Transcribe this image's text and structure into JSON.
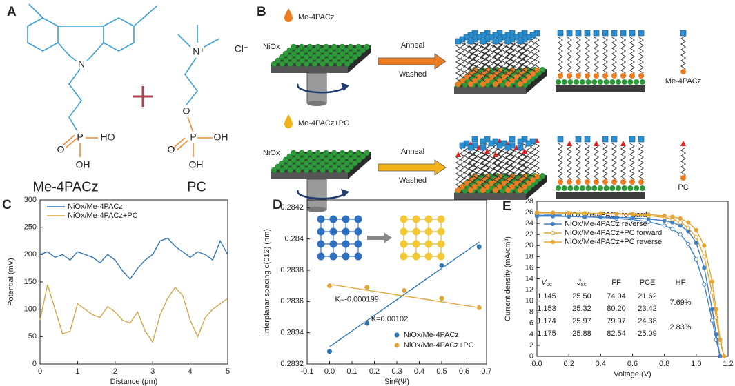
{
  "panel_a": {
    "label": "A",
    "plus": "+",
    "molecules": [
      {
        "name": "Me-4PACz",
        "atoms": [
          "N",
          "O",
          "P",
          "HO",
          "OH"
        ]
      },
      {
        "name": "PC",
        "atoms": [
          "N⁺",
          "Cl⁻",
          "O",
          "O",
          "P",
          "OH",
          "OH"
        ]
      }
    ]
  },
  "panel_b": {
    "label": "B",
    "rows": [
      {
        "precursor": "Me-4PACz",
        "substrate": "NiOx",
        "step1": "Anneal",
        "step2": "Washed",
        "molecule": "Me-4PACz"
      },
      {
        "precursor": "Me-4PACz+PC",
        "substrate": "NiOx",
        "step1": "Anneal",
        "step2": "Washed",
        "molecule": "PC"
      }
    ]
  },
  "chart_data": [
    {
      "type": "line",
      "panel_label": "C",
      "x": [
        0,
        0.2,
        0.4,
        0.6,
        0.8,
        1,
        1.2,
        1.4,
        1.6,
        1.8,
        2,
        2.2,
        2.4,
        2.6,
        2.8,
        3,
        3.2,
        3.4,
        3.6,
        3.8,
        4,
        4.2,
        4.4,
        4.6,
        4.8,
        5
      ],
      "series": [
        {
          "name": "NiOx/Me-4PACz",
          "color": "#2f73b8",
          "values": [
            200,
            205,
            195,
            200,
            190,
            205,
            200,
            195,
            185,
            200,
            190,
            170,
            155,
            175,
            190,
            200,
            225,
            230,
            215,
            205,
            195,
            205,
            200,
            190,
            225,
            200
          ]
        },
        {
          "name": "NiOx/Me-4PACz+PC",
          "color": "#d4a548",
          "values": [
            80,
            145,
            100,
            55,
            60,
            110,
            100,
            90,
            85,
            105,
            95,
            80,
            75,
            95,
            60,
            40,
            90,
            120,
            140,
            125,
            80,
            50,
            85,
            100,
            110,
            120
          ]
        }
      ],
      "xlim": [
        0,
        5
      ],
      "xticks": [
        0,
        1,
        2,
        3,
        4,
        5
      ],
      "ylim": [
        0,
        300
      ],
      "yticks": [
        0,
        50,
        100,
        150,
        200,
        250,
        300
      ],
      "xlabel": "Distance (μm)",
      "ylabel": "Potential (mV)",
      "legend": "upper left"
    },
    {
      "type": "scatter",
      "panel_label": "D",
      "x": [
        0,
        0.167,
        0.333,
        0.5,
        0.667
      ],
      "series": [
        {
          "name": "NiOx/Me-4PACz",
          "color": "#2e75b6",
          "values": [
            0.28328,
            0.28346,
            0.28367,
            0.28383,
            0.28395
          ],
          "fit": [
            0.28331,
            0.28398
          ],
          "annotation": "K=0.00102"
        },
        {
          "name": "NiOx/Me-4PACz+PC",
          "color": "#e0a63a",
          "values": [
            0.2837,
            0.28369,
            0.28367,
            0.28362,
            0.28356
          ],
          "fit": [
            0.28371,
            0.28356
          ],
          "annotation": "K=-0.000199"
        }
      ],
      "xlim": [
        -0.1,
        0.7
      ],
      "xticks": [
        -0.1,
        {
          "value": 0,
          "label": "0.0"
        },
        0.1,
        0.2,
        0.3,
        0.4,
        0.5,
        0.6,
        0.7
      ],
      "ylim": [
        0.2832,
        0.28425
      ],
      "yticks": [
        0.2832,
        0.2834,
        0.2836,
        0.2838,
        0.284,
        0.2842
      ],
      "xlabel": "Sin²(Ψ)",
      "ylabel": "Interplanar spacing d(012) (nm)",
      "legend": "lower right"
    },
    {
      "type": "line",
      "panel_label": "E",
      "x": [
        0,
        0.1,
        0.2,
        0.3,
        0.4,
        0.5,
        0.6,
        0.7,
        0.8,
        0.85,
        0.9,
        0.95,
        1,
        1.05,
        1.1,
        1.125,
        1.15,
        1.175
      ],
      "series": [
        {
          "name": "NiOx/Me-4PACz forward",
          "color": "#3f7fc4",
          "marker": "open",
          "values": [
            25.5,
            25.4,
            25.3,
            25.2,
            25.1,
            24.9,
            24.7,
            24.3,
            23.6,
            23,
            22,
            20.3,
            17.5,
            13,
            6.5,
            3,
            0,
            null
          ]
        },
        {
          "name": "NiOx/Me-4PACz reverse",
          "color": "#3f7fc4",
          "marker": "filled",
          "values": [
            25.3,
            25.3,
            25.25,
            25.2,
            25.15,
            25.1,
            25,
            24.8,
            24.5,
            24.2,
            23.6,
            22.6,
            20.5,
            16,
            8.5,
            4,
            0,
            null
          ]
        },
        {
          "name": "NiOx/Me-4PACz+PC forward",
          "color": "#e5a535",
          "marker": "open",
          "values": [
            26,
            25.95,
            25.9,
            25.85,
            25.8,
            25.7,
            25.6,
            25.4,
            25.1,
            24.8,
            24.2,
            23.2,
            21.5,
            18,
            11.5,
            7,
            2.5,
            0
          ]
        },
        {
          "name": "NiOx/Me-4PACz+PC reverse",
          "color": "#e5a535",
          "marker": "filled",
          "values": [
            25.9,
            25.9,
            25.85,
            25.85,
            25.8,
            25.75,
            25.7,
            25.6,
            25.4,
            25.2,
            24.9,
            24.2,
            22.8,
            20,
            13.5,
            8.5,
            3,
            0
          ]
        }
      ],
      "xlim": [
        0,
        1.2
      ],
      "xticks": [
        {
          "value": 0,
          "label": "0.0"
        },
        0.2,
        0.4,
        0.6,
        0.8,
        {
          "value": 1,
          "label": "1.0"
        },
        1.2
      ],
      "ylim": [
        0,
        28
      ],
      "yticks": [
        0,
        2,
        4,
        6,
        8,
        10,
        12,
        14,
        16,
        18,
        20,
        22,
        24,
        26,
        28
      ],
      "xlabel": "Voltage (V)",
      "ylabel": "Current density (mA/cm²)",
      "legend": "upper left",
      "table": {
        "header": [
          {
            "text": "V",
            "sub": "oc"
          },
          {
            "text": "J",
            "sub": "sc"
          },
          "FF",
          "PCE",
          "HF"
        ],
        "rows": [
          [
            "1.145",
            "25.50",
            "74.04",
            "21.62"
          ],
          [
            "1.153",
            "25.32",
            "80.20",
            "23.42"
          ],
          [
            "1.174",
            "25.97",
            "79.97",
            "24.38"
          ],
          [
            "1.175",
            "25.88",
            "82.54",
            "25.09"
          ]
        ],
        "hf": [
          "7.69%",
          "2.83%"
        ],
        "row_colors": [
          "#3f7fc4",
          "#3f7fc4",
          "#e5a535",
          "#e5a535"
        ]
      }
    }
  ]
}
